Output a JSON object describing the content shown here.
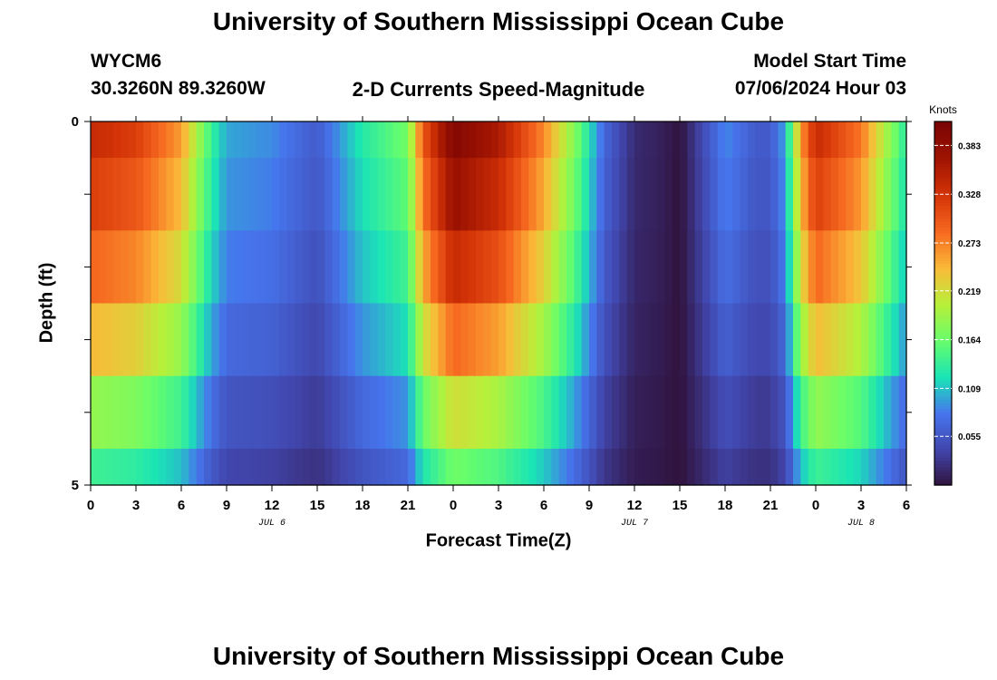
{
  "header": {
    "title": "University of Southern Mississippi Ocean Cube",
    "station_id": "WYCM6",
    "coordinates": "30.3260N  89.3260W",
    "subtitle": "2-D Currents Speed-Magnitude",
    "model_start_label": "Model Start Time",
    "model_start_value": "07/06/2024 Hour 03"
  },
  "footer": {
    "title": "University of Southern Mississippi Ocean Cube"
  },
  "chart_data": {
    "type": "heatmap",
    "xlabel": "Forecast Time(Z)",
    "ylabel": "Depth (ft)",
    "colorbar_label": "Knots",
    "colorbar_ticks": [
      "0.383",
      "0.328",
      "0.273",
      "0.219",
      "0.164",
      "0.109",
      "0.055"
    ],
    "colorbar_tick_values": [
      0.383,
      0.328,
      0.273,
      0.219,
      0.164,
      0.109,
      0.055
    ],
    "color_range": [
      0.0,
      0.41
    ],
    "x_ticks": [
      "0",
      "3",
      "6",
      "9",
      "12",
      "15",
      "18",
      "21",
      "0",
      "3",
      "6",
      "9",
      "12",
      "15",
      "18",
      "21",
      "0",
      "3",
      "6"
    ],
    "x_tick_hours": [
      0,
      3,
      6,
      9,
      12,
      15,
      18,
      21,
      24,
      27,
      30,
      33,
      36,
      39,
      42,
      45,
      48,
      51,
      54
    ],
    "x_range_hours": [
      0,
      54
    ],
    "date_labels": [
      {
        "text": "JUL 6",
        "hour": 12
      },
      {
        "text": "JUL 7",
        "hour": 36
      },
      {
        "text": "JUL 8",
        "hour": 51
      }
    ],
    "y_ticks": [
      "0",
      "5"
    ],
    "y_range_ft": [
      0,
      5
    ],
    "depth_layer_edges_ft": [
      0,
      0.5,
      1.5,
      2.5,
      3.5,
      4.5,
      5
    ],
    "speed_profile_keypoints": {
      "hours": [
        0,
        3,
        6,
        7,
        8,
        9,
        12,
        15,
        18,
        21,
        22,
        24,
        27,
        30,
        32,
        34,
        36,
        38,
        39,
        40,
        42,
        44,
        45,
        46,
        47,
        48,
        51,
        54
      ],
      "knots": [
        0.34,
        0.32,
        0.26,
        0.2,
        0.14,
        0.1,
        0.09,
        0.06,
        0.13,
        0.17,
        0.3,
        0.4,
        0.36,
        0.27,
        0.18,
        0.07,
        0.02,
        0.01,
        0.0,
        0.03,
        0.09,
        0.06,
        0.06,
        0.1,
        0.26,
        0.34,
        0.28,
        0.13
      ]
    },
    "layer_speed_multipliers": [
      1.0,
      0.94,
      0.85,
      0.72,
      0.55,
      0.42
    ]
  }
}
